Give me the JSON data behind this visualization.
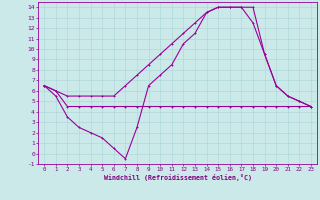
{
  "background_color": "#cce9ea",
  "grid_color": "#b0d8da",
  "line_color": "#990099",
  "xlabel": "Windchill (Refroidissement éolien,°C)",
  "xlabel_color": "#800080",
  "tick_color": "#800080",
  "xlim": [
    -0.5,
    23.5
  ],
  "ylim": [
    -1,
    14.5
  ],
  "xticks": [
    0,
    1,
    2,
    3,
    4,
    5,
    6,
    7,
    8,
    9,
    10,
    11,
    12,
    13,
    14,
    15,
    16,
    17,
    18,
    19,
    20,
    21,
    22,
    23
  ],
  "yticks": [
    -1,
    0,
    1,
    2,
    3,
    4,
    5,
    6,
    7,
    8,
    9,
    10,
    11,
    12,
    13,
    14
  ],
  "line1_x": [
    0,
    1,
    2,
    3,
    4,
    5,
    6,
    7,
    8,
    9,
    10,
    11,
    12,
    13,
    14,
    15,
    16,
    17,
    18,
    19,
    20,
    21,
    22,
    23
  ],
  "line1_y": [
    6.5,
    6.0,
    4.5,
    4.5,
    4.5,
    4.5,
    4.5,
    4.5,
    4.5,
    4.5,
    4.5,
    4.5,
    4.5,
    4.5,
    4.5,
    4.5,
    4.5,
    4.5,
    4.5,
    4.5,
    4.5,
    4.5,
    4.5,
    4.5
  ],
  "line2_x": [
    0,
    1,
    2,
    3,
    4,
    5,
    6,
    7,
    8,
    9,
    10,
    11,
    12,
    13,
    14,
    15,
    16,
    17,
    18,
    19,
    20,
    21,
    22,
    23
  ],
  "line2_y": [
    6.5,
    5.5,
    3.5,
    2.5,
    2.0,
    1.5,
    0.5,
    -0.5,
    2.5,
    6.5,
    7.5,
    8.5,
    10.5,
    11.5,
    13.5,
    14.0,
    14.0,
    14.0,
    14.0,
    9.5,
    6.5,
    5.5,
    5.0,
    4.5
  ],
  "line3_x": [
    0,
    1,
    2,
    3,
    4,
    5,
    6,
    7,
    8,
    9,
    10,
    11,
    12,
    13,
    14,
    15,
    16,
    17,
    18,
    19,
    20,
    21,
    22,
    23
  ],
  "line3_y": [
    6.5,
    6.0,
    5.5,
    5.5,
    5.5,
    5.5,
    5.5,
    6.5,
    7.5,
    8.5,
    9.5,
    10.5,
    11.5,
    12.5,
    13.5,
    14.0,
    14.0,
    14.0,
    12.5,
    9.5,
    6.5,
    5.5,
    5.0,
    4.5
  ]
}
